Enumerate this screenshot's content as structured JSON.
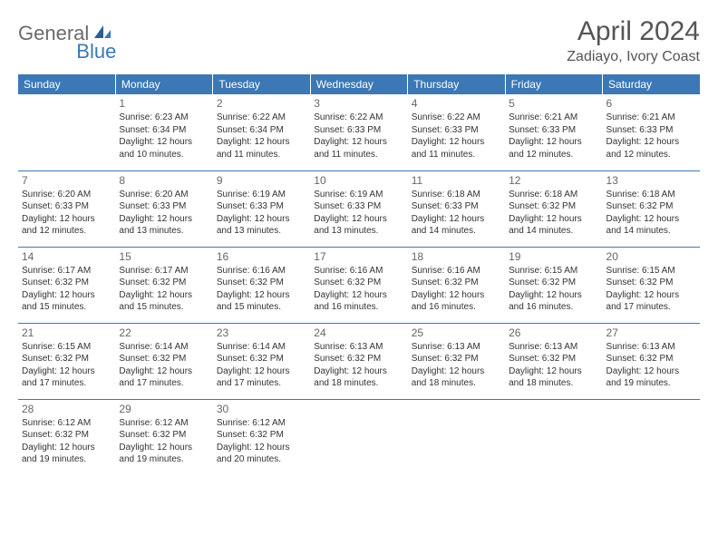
{
  "logo": {
    "text1": "General",
    "text2": "Blue"
  },
  "title": "April 2024",
  "location": "Zadiayo, Ivory Coast",
  "weekdays": [
    "Sunday",
    "Monday",
    "Tuesday",
    "Wednesday",
    "Thursday",
    "Friday",
    "Saturday"
  ],
  "colors": {
    "header_bg": "#3b78b5",
    "header_text": "#ffffff",
    "border": "#3b78b5",
    "text": "#333333",
    "title": "#555555"
  },
  "grid": [
    [
      null,
      {
        "n": "1",
        "sr": "6:23 AM",
        "ss": "6:34 PM",
        "dl": "12 hours and 10 minutes."
      },
      {
        "n": "2",
        "sr": "6:22 AM",
        "ss": "6:34 PM",
        "dl": "12 hours and 11 minutes."
      },
      {
        "n": "3",
        "sr": "6:22 AM",
        "ss": "6:33 PM",
        "dl": "12 hours and 11 minutes."
      },
      {
        "n": "4",
        "sr": "6:22 AM",
        "ss": "6:33 PM",
        "dl": "12 hours and 11 minutes."
      },
      {
        "n": "5",
        "sr": "6:21 AM",
        "ss": "6:33 PM",
        "dl": "12 hours and 12 minutes."
      },
      {
        "n": "6",
        "sr": "6:21 AM",
        "ss": "6:33 PM",
        "dl": "12 hours and 12 minutes."
      }
    ],
    [
      {
        "n": "7",
        "sr": "6:20 AM",
        "ss": "6:33 PM",
        "dl": "12 hours and 12 minutes."
      },
      {
        "n": "8",
        "sr": "6:20 AM",
        "ss": "6:33 PM",
        "dl": "12 hours and 13 minutes."
      },
      {
        "n": "9",
        "sr": "6:19 AM",
        "ss": "6:33 PM",
        "dl": "12 hours and 13 minutes."
      },
      {
        "n": "10",
        "sr": "6:19 AM",
        "ss": "6:33 PM",
        "dl": "12 hours and 13 minutes."
      },
      {
        "n": "11",
        "sr": "6:18 AM",
        "ss": "6:33 PM",
        "dl": "12 hours and 14 minutes."
      },
      {
        "n": "12",
        "sr": "6:18 AM",
        "ss": "6:32 PM",
        "dl": "12 hours and 14 minutes."
      },
      {
        "n": "13",
        "sr": "6:18 AM",
        "ss": "6:32 PM",
        "dl": "12 hours and 14 minutes."
      }
    ],
    [
      {
        "n": "14",
        "sr": "6:17 AM",
        "ss": "6:32 PM",
        "dl": "12 hours and 15 minutes."
      },
      {
        "n": "15",
        "sr": "6:17 AM",
        "ss": "6:32 PM",
        "dl": "12 hours and 15 minutes."
      },
      {
        "n": "16",
        "sr": "6:16 AM",
        "ss": "6:32 PM",
        "dl": "12 hours and 15 minutes."
      },
      {
        "n": "17",
        "sr": "6:16 AM",
        "ss": "6:32 PM",
        "dl": "12 hours and 16 minutes."
      },
      {
        "n": "18",
        "sr": "6:16 AM",
        "ss": "6:32 PM",
        "dl": "12 hours and 16 minutes."
      },
      {
        "n": "19",
        "sr": "6:15 AM",
        "ss": "6:32 PM",
        "dl": "12 hours and 16 minutes."
      },
      {
        "n": "20",
        "sr": "6:15 AM",
        "ss": "6:32 PM",
        "dl": "12 hours and 17 minutes."
      }
    ],
    [
      {
        "n": "21",
        "sr": "6:15 AM",
        "ss": "6:32 PM",
        "dl": "12 hours and 17 minutes."
      },
      {
        "n": "22",
        "sr": "6:14 AM",
        "ss": "6:32 PM",
        "dl": "12 hours and 17 minutes."
      },
      {
        "n": "23",
        "sr": "6:14 AM",
        "ss": "6:32 PM",
        "dl": "12 hours and 17 minutes."
      },
      {
        "n": "24",
        "sr": "6:13 AM",
        "ss": "6:32 PM",
        "dl": "12 hours and 18 minutes."
      },
      {
        "n": "25",
        "sr": "6:13 AM",
        "ss": "6:32 PM",
        "dl": "12 hours and 18 minutes."
      },
      {
        "n": "26",
        "sr": "6:13 AM",
        "ss": "6:32 PM",
        "dl": "12 hours and 18 minutes."
      },
      {
        "n": "27",
        "sr": "6:13 AM",
        "ss": "6:32 PM",
        "dl": "12 hours and 19 minutes."
      }
    ],
    [
      {
        "n": "28",
        "sr": "6:12 AM",
        "ss": "6:32 PM",
        "dl": "12 hours and 19 minutes."
      },
      {
        "n": "29",
        "sr": "6:12 AM",
        "ss": "6:32 PM",
        "dl": "12 hours and 19 minutes."
      },
      {
        "n": "30",
        "sr": "6:12 AM",
        "ss": "6:32 PM",
        "dl": "12 hours and 20 minutes."
      },
      null,
      null,
      null,
      null
    ]
  ],
  "labels": {
    "sunrise": "Sunrise:",
    "sunset": "Sunset:",
    "daylight": "Daylight:"
  }
}
